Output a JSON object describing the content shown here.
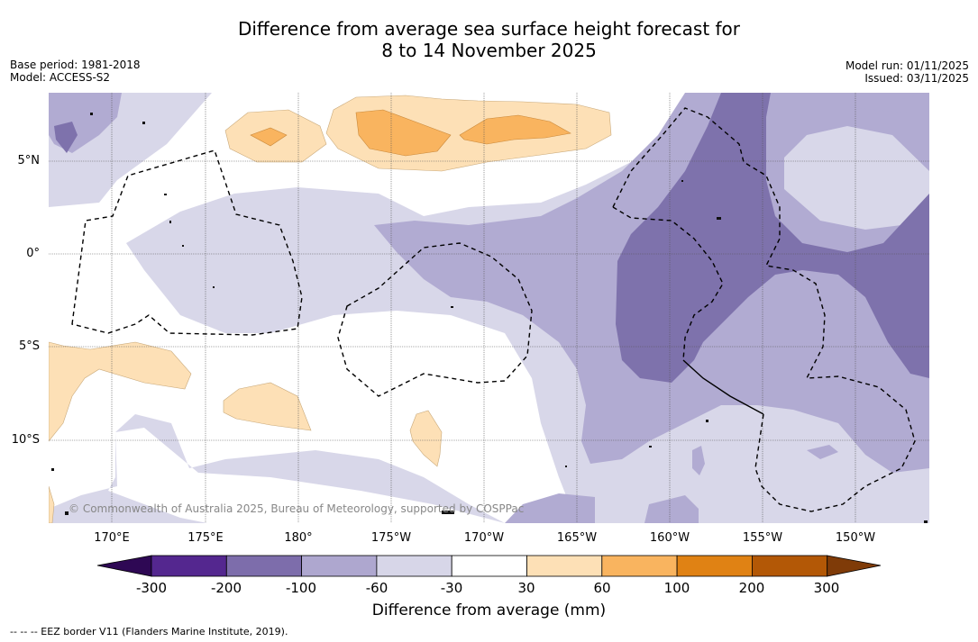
{
  "header": {
    "title_line1": "Difference from average sea surface height forecast for",
    "title_line2": "8 to 14 November 2025",
    "base_period": "Base period: 1981-2018",
    "model": "Model: ACCESS-S2",
    "model_run": "Model run: 01/11/2025",
    "issued": "Issued: 03/11/2025"
  },
  "axes": {
    "lat_labels": [
      "5°N",
      "0°",
      "5°S",
      "10°S"
    ],
    "lon_labels": [
      "170°E",
      "175°E",
      "180°",
      "175°W",
      "170°W",
      "165°W",
      "160°W",
      "155°W",
      "150°W"
    ]
  },
  "colorbar": {
    "title": "Difference from average (mm)",
    "tick_labels": [
      "-300",
      "-200",
      "-100",
      "-60",
      "-30",
      "30",
      "60",
      "100",
      "200",
      "300"
    ],
    "colors": [
      "#2e0854",
      "#54278f",
      "#7d6dab",
      "#aea7cf",
      "#d7d6e8",
      "#ffffff",
      "#fde0b6",
      "#f9b45f",
      "#e08214",
      "#b35806",
      "#7f3b08"
    ]
  },
  "map": {
    "copyright": "© Commonwealth of Australia 2025, Bureau of Meteorology, supported by COSPPac",
    "palette": {
      "dark_purple": "#7e72ac",
      "mid_purple": "#b1abd2",
      "light_purple": "#d8d7e9",
      "light_orange": "#fde0b6",
      "mid_orange": "#f9b45f"
    }
  },
  "footnote": "--  --  -- EEZ border V11 (Flanders Marine Institute, 2019)."
}
